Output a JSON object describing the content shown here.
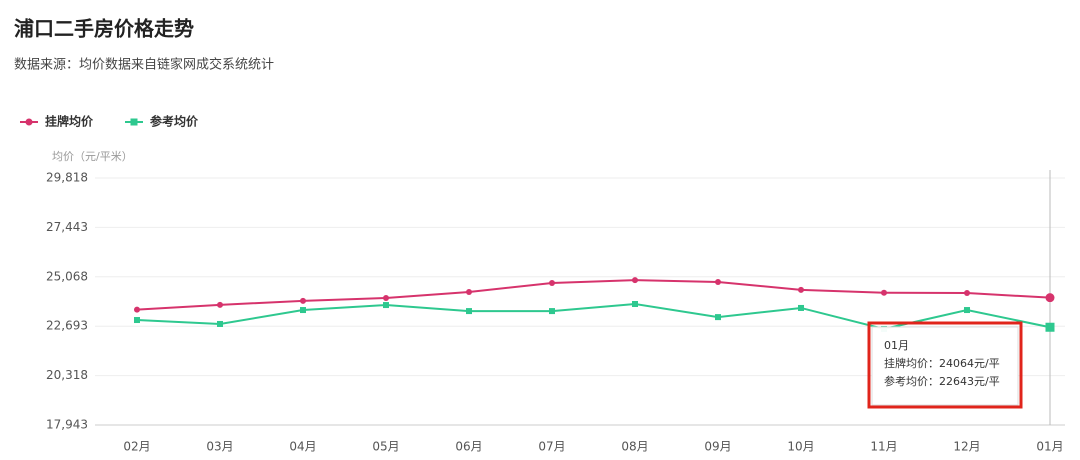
{
  "chart_data": {
    "type": "line",
    "title": "浦口二手房价格走势",
    "subtitle": "数据来源：均价数据来自链家网成交系统统计",
    "y_label": "均价（元/平米）",
    "categories": [
      "02月",
      "03月",
      "04月",
      "05月",
      "06月",
      "07月",
      "08月",
      "09月",
      "10月",
      "11月",
      "12月",
      "01月"
    ],
    "series": [
      {
        "name": "挂牌均价",
        "color": "#d6336c",
        "marker": "circle",
        "values": [
          23490,
          23720,
          23910,
          24050,
          24340,
          24770,
          24910,
          24820,
          24440,
          24300,
          24290,
          24064
        ]
      },
      {
        "name": "参考均价",
        "color": "#2ec88f",
        "marker": "square",
        "values": [
          22990,
          22800,
          23470,
          23710,
          23420,
          23420,
          23760,
          23130,
          23570,
          22560,
          23470,
          22643
        ]
      }
    ],
    "ylim": [
      17943,
      29818
    ],
    "yticks": [
      {
        "value": 17943,
        "label": "17,943"
      },
      {
        "value": 20318,
        "label": "20,318"
      },
      {
        "value": 22693,
        "label": "22,693"
      },
      {
        "value": 25068,
        "label": "25,068"
      },
      {
        "value": 27443,
        "label": "27,443"
      },
      {
        "value": 29818,
        "label": "29,818"
      }
    ],
    "grid": true,
    "legend": "top-left",
    "tooltip": {
      "title": "01月",
      "lines": [
        "挂牌均价：24064元/平",
        "参考均价：22643元/平"
      ]
    }
  }
}
